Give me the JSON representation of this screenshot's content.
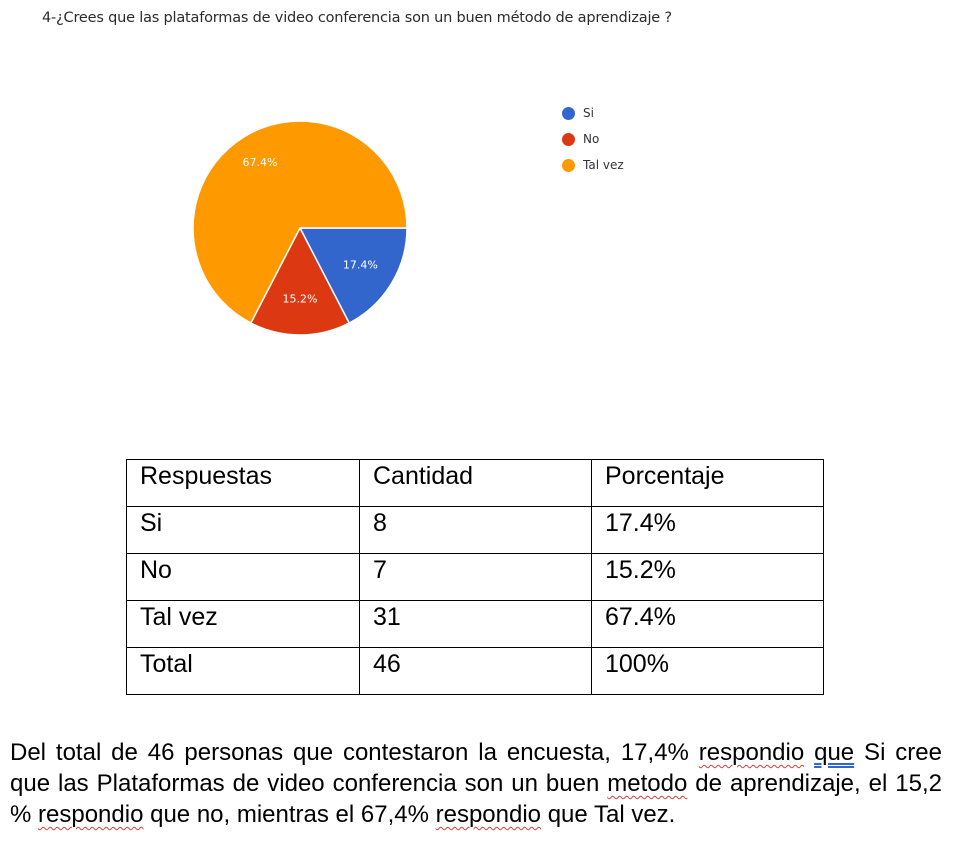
{
  "question": "4-¿Crees que las plataformas de video conferencia son un buen método de aprendizaje ?",
  "chart_data": {
    "type": "pie",
    "categories": [
      "Si",
      "No",
      "Tal vez"
    ],
    "values": [
      17.4,
      15.2,
      67.4
    ],
    "labels": [
      "17.4%",
      "15.2%",
      "67.4%"
    ],
    "colors": [
      "#3366cc",
      "#dc3912",
      "#ff9900"
    ],
    "legend_position": "right"
  },
  "table": {
    "headers": [
      "Respuestas",
      "Cantidad",
      "Porcentaje"
    ],
    "rows": [
      [
        "Si",
        "8",
        "17.4%"
      ],
      [
        "No",
        "7",
        "15.2%"
      ],
      [
        "Tal vez",
        "31",
        "67.4%"
      ],
      [
        "Total",
        "46",
        "100%"
      ]
    ]
  },
  "paragraph": {
    "p1": "Del total de 46 personas que contestaron la encuesta, 17,4% ",
    "w1": "respondio",
    "p2": " ",
    "w2": "que",
    "p3": " Si cree que las Plataformas de video conferencia son un buen ",
    "w3": "metodo",
    "p4": " de aprendizaje, el 15,2 % ",
    "w4": "respondio",
    "p5": " que no, mientras el 67,4% ",
    "w5": "respondio",
    "p6": " que Tal vez."
  }
}
